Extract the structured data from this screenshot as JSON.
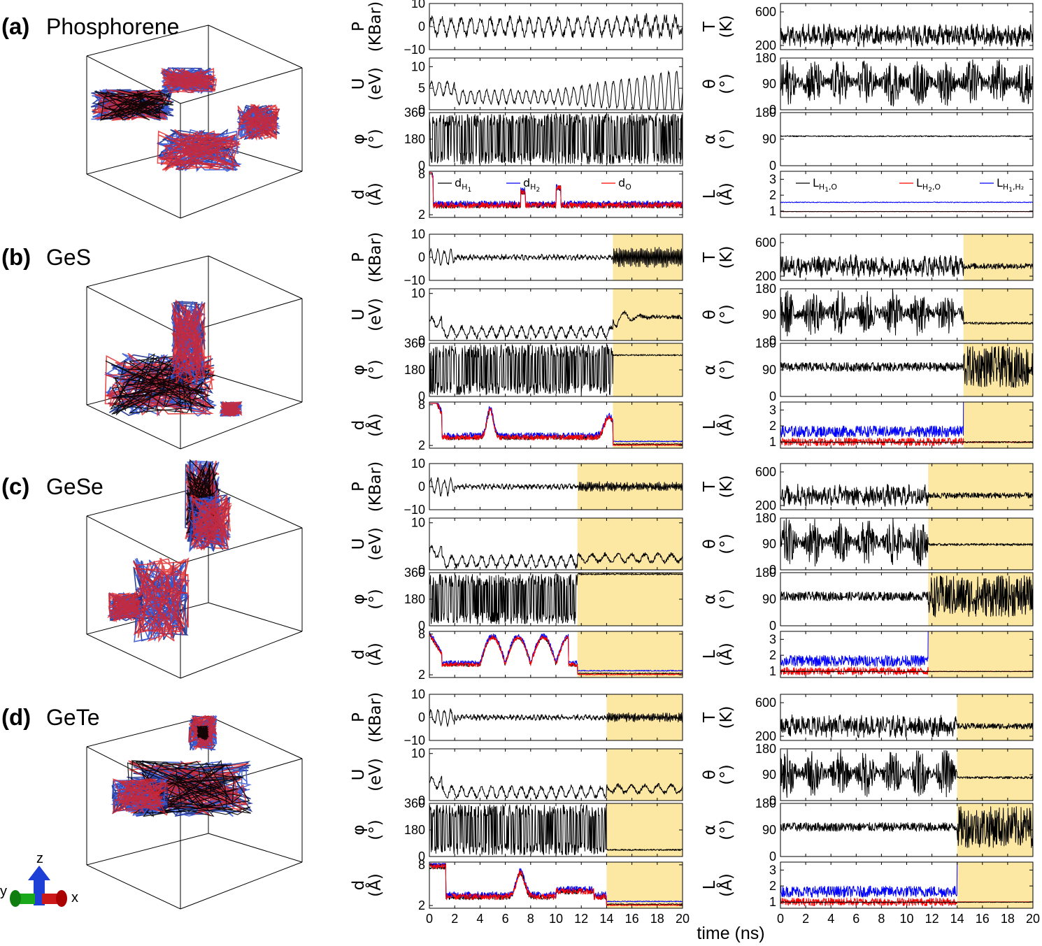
{
  "panels": [
    {
      "letter": "(a)",
      "material": "Phosphorene",
      "shade_start": null
    },
    {
      "letter": "(b)",
      "material": "GeS",
      "shade_start": 14.5
    },
    {
      "letter": "(c)",
      "material": "GeSe",
      "shade_start": 11.7
    },
    {
      "letter": "(d)",
      "material": "GeTe",
      "shade_start": 14.0
    }
  ],
  "xaxis_label": "time (ns)",
  "triad": {
    "x": "x",
    "y": "y",
    "z": "z"
  },
  "ylabels": {
    "P": [
      "P",
      "(KBar)"
    ],
    "U": [
      "U",
      "(eV)"
    ],
    "phi": [
      "φ",
      "(°)"
    ],
    "d": [
      "d",
      "(Å)"
    ],
    "T": [
      "T",
      "(K)"
    ],
    "theta": [
      "θ",
      "(°)"
    ],
    "alpha": [
      "α",
      "(°)"
    ],
    "L": [
      "L",
      "(Å)"
    ]
  },
  "legend_d": [
    {
      "main": "d",
      "sub": "H",
      "subsub": "1",
      "rest": "",
      "color": "#000000"
    },
    {
      "main": "d",
      "sub": "H",
      "subsub": "2",
      "rest": "",
      "color": "#0000ff"
    },
    {
      "main": "d",
      "sub": "O",
      "subsub": "",
      "rest": "",
      "color": "#ff0000"
    }
  ],
  "legend_L": [
    {
      "main": "L",
      "sub": "H",
      "subsub": "1",
      "rest": ",O",
      "color": "#000000"
    },
    {
      "main": "L",
      "sub": "H",
      "subsub": "2",
      "rest": ",O",
      "color": "#ff0000"
    },
    {
      "main": "L",
      "sub": "H",
      "subsub": "1",
      "rest": ",H₂",
      "color": "#0000ff"
    }
  ],
  "colors": {
    "shade": "#fce7a3",
    "d_H1": "#000000",
    "d_H2": "#0000ff",
    "d_O": "#ff0000"
  },
  "chart_data": [
    {
      "type": "line",
      "panel": "(a)",
      "quantity": "P",
      "ylim": [
        -10,
        10
      ],
      "yticks": [
        "10",
        "0",
        "−10"
      ],
      "xlim": [
        0,
        20
      ]
    },
    {
      "type": "line",
      "panel": "(a)",
      "quantity": "U",
      "ylim": [
        0,
        12
      ],
      "yticks": [
        "10",
        "5",
        "0"
      ],
      "xlim": [
        0,
        20
      ]
    },
    {
      "type": "line",
      "panel": "(a)",
      "quantity": "phi",
      "ylim": [
        0,
        360
      ],
      "yticks": [
        "360",
        "180",
        "0"
      ],
      "xlim": [
        0,
        20
      ]
    },
    {
      "type": "line",
      "panel": "(a)",
      "quantity": "d",
      "ylim": [
        2,
        8
      ],
      "yticks": [
        "8",
        "2"
      ],
      "xlim": [
        0,
        20
      ],
      "series": [
        "d_H1",
        "d_H2",
        "d_O"
      ]
    },
    {
      "type": "line",
      "panel": "(a)",
      "quantity": "T",
      "ylim": [
        150,
        700
      ],
      "yticks": [
        "600",
        "200"
      ],
      "xlim": [
        0,
        20
      ]
    },
    {
      "type": "line",
      "panel": "(a)",
      "quantity": "theta",
      "ylim": [
        0,
        180
      ],
      "yticks": [
        "180",
        "90",
        "0"
      ],
      "xlim": [
        0,
        20
      ]
    },
    {
      "type": "line",
      "panel": "(a)",
      "quantity": "alpha",
      "ylim": [
        0,
        180
      ],
      "yticks": [
        "180",
        "90",
        "0"
      ],
      "xlim": [
        0,
        20
      ]
    },
    {
      "type": "line",
      "panel": "(a)",
      "quantity": "L",
      "ylim": [
        0.7,
        3.5
      ],
      "yticks": [
        "3",
        "2",
        "1"
      ],
      "xlim": [
        0,
        20
      ],
      "series": [
        "L_H1O",
        "L_H2O",
        "L_H1H2"
      ]
    }
  ],
  "xticks": [
    "0",
    "2",
    "4",
    "6",
    "8",
    "10",
    "12",
    "14",
    "16",
    "18",
    "20"
  ]
}
